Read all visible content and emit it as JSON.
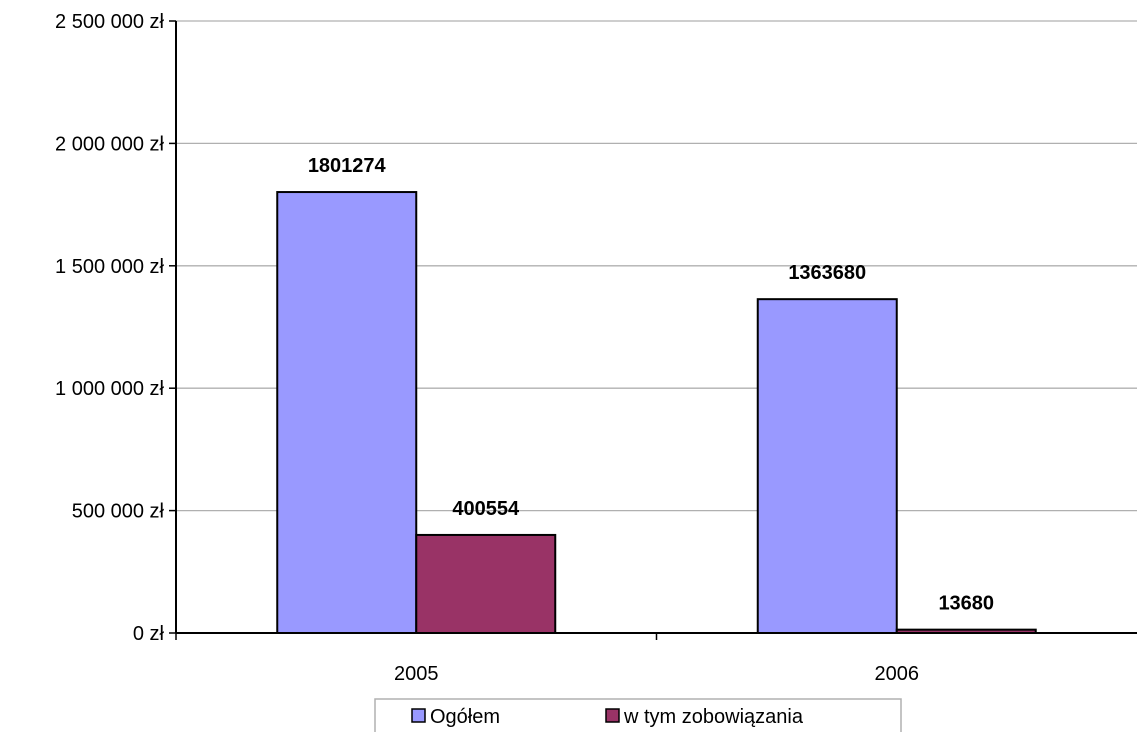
{
  "chart_data": {
    "type": "bar",
    "categories": [
      "2005",
      "2006"
    ],
    "series": [
      {
        "name": "Ogółem",
        "values": [
          1801274,
          1363680
        ],
        "labels": [
          "1801274",
          "1363680"
        ],
        "color": "#9999ff"
      },
      {
        "name": "w tym zobowiązania",
        "values": [
          400554,
          13680
        ],
        "labels": [
          "400554",
          "13680"
        ],
        "color": "#993366"
      }
    ],
    "title": "",
    "xlabel": "",
    "ylabel": "",
    "ylim": [
      0,
      2500000
    ],
    "yticks": [
      0,
      500000,
      1000000,
      1500000,
      2000000,
      2500000
    ],
    "ytick_labels": [
      "0 zł",
      "500 000 zł",
      "1 000 000 zł",
      "1 500 000 zł",
      "2 000 000 zł",
      "2 500 000 zł"
    ],
    "grid": true,
    "legend_position": "bottom"
  }
}
